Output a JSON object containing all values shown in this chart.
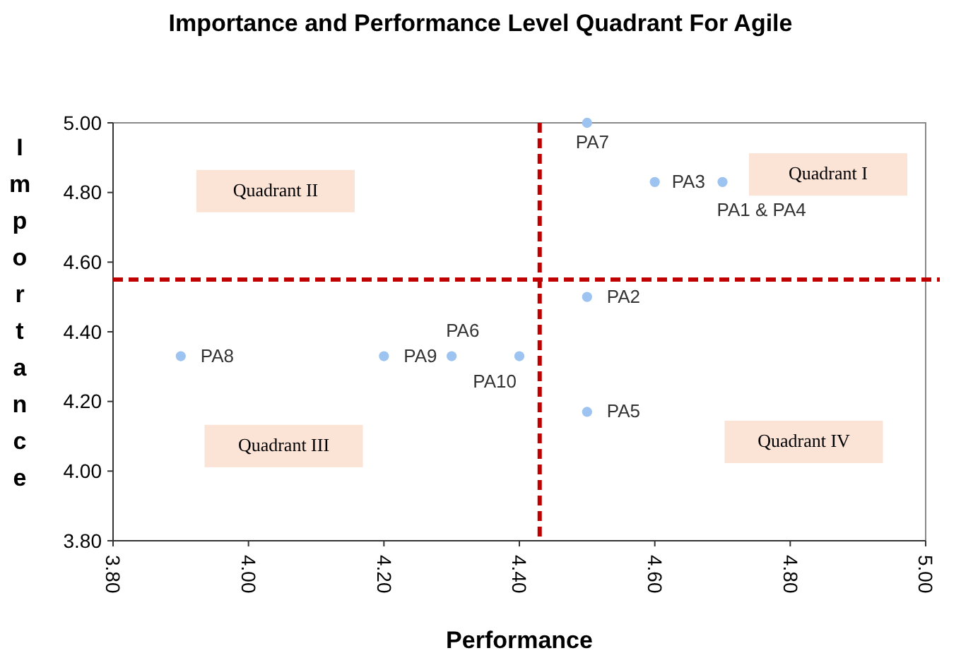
{
  "chart_data": {
    "type": "scatter",
    "title": "Importance and Performance Level Quadrant For Agile",
    "xlabel": "Performance",
    "ylabel": "Importance",
    "x": [
      4.7,
      4.5,
      4.6,
      4.5,
      4.3,
      4.5,
      3.9,
      4.2,
      4.4
    ],
    "values": [
      4.83,
      4.5,
      4.83,
      4.17,
      4.33,
      5.0,
      4.33,
      4.33,
      4.33
    ],
    "color": "#9dc3f0",
    "marker": "circle",
    "grid": false,
    "xlim": [
      3.8,
      5.0
    ],
    "xticks": [
      {
        "value": 3.8,
        "label": "3.80"
      },
      {
        "value": 4.0,
        "label": "4.00"
      },
      {
        "value": 4.2,
        "label": "4.20"
      },
      {
        "value": 4.4,
        "label": "4.40"
      },
      {
        "value": 4.6,
        "label": "4.60"
      },
      {
        "value": 4.8,
        "label": "4.80"
      },
      {
        "value": 5.0,
        "label": "5.00"
      }
    ],
    "ylim": [
      3.8,
      5.0
    ],
    "yticks": [
      {
        "value": 3.8,
        "label": "3.80"
      },
      {
        "value": 4.0,
        "label": "4.00"
      },
      {
        "value": 4.2,
        "label": "4.20"
      },
      {
        "value": 4.4,
        "label": "4.40"
      },
      {
        "value": 4.6,
        "label": "4.60"
      },
      {
        "value": 4.8,
        "label": "4.80"
      },
      {
        "value": 5.0,
        "label": "5.00"
      }
    ],
    "ref_lines": [
      {
        "axis": "x",
        "value": 4.43,
        "color": "#c00000",
        "line_style": "dashed"
      },
      {
        "axis": "y",
        "value": 4.55,
        "color": "#c00000",
        "line_style": "dashed"
      }
    ],
    "annotations": [
      {
        "text": "PA1 & PA4",
        "x": 4.7,
        "y": 4.83
      },
      {
        "text": "PA2",
        "x": 4.5,
        "y": 4.5
      },
      {
        "text": "PA3",
        "x": 4.6,
        "y": 4.83
      },
      {
        "text": "PA5",
        "x": 4.5,
        "y": 4.17
      },
      {
        "text": "PA6",
        "x": 4.3,
        "y": 4.33
      },
      {
        "text": "PA7",
        "x": 4.5,
        "y": 5.0
      },
      {
        "text": "PA8",
        "x": 3.9,
        "y": 4.33
      },
      {
        "text": "PA9",
        "x": 4.2,
        "y": 4.33
      },
      {
        "text": "PA10",
        "x": 4.4,
        "y": 4.33
      },
      "Quadrant I",
      "Quadrant II",
      "Quadrant III",
      "Quadrant IV"
    ]
  }
}
